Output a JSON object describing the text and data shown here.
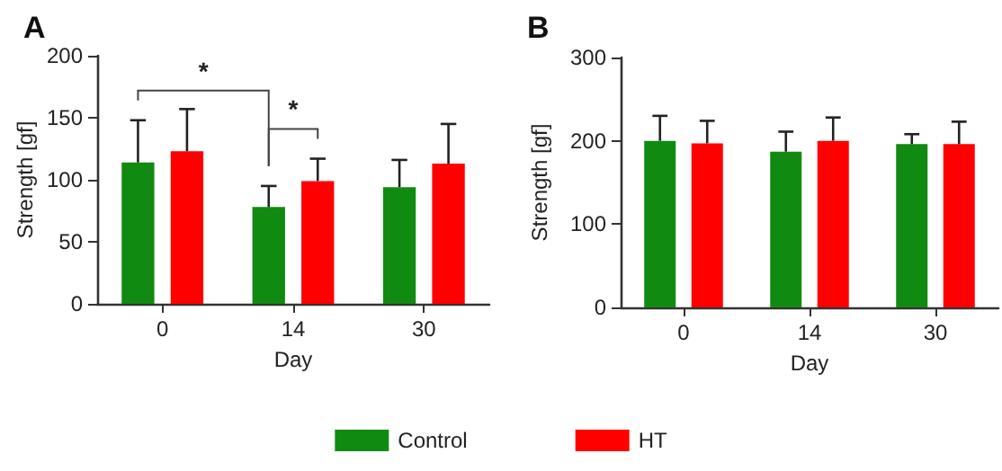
{
  "chart_data": [
    {
      "type": "bar",
      "title": "A",
      "xlabel": "Day",
      "ylabel": "Strength [gf]",
      "categories": [
        "0",
        "14",
        "30"
      ],
      "ylim": [
        0,
        200
      ],
      "yticks": [
        0,
        50,
        100,
        150,
        200
      ],
      "grid": false,
      "legend": "bottom",
      "annotations": [
        "*",
        "*"
      ],
      "series": [
        {
          "name": "Control",
          "color": "#118a11",
          "values": [
            114,
            78,
            94
          ],
          "errors": [
            [
              114,
              148
            ],
            [
              78,
              95
            ],
            [
              94,
              116
            ]
          ]
        },
        {
          "name": "HT",
          "color": "#ff0000",
          "values": [
            123,
            99,
            113
          ],
          "errors": [
            [
              123,
              157
            ],
            [
              99,
              117
            ],
            [
              113,
              145
            ]
          ]
        }
      ]
    },
    {
      "type": "bar",
      "title": "B",
      "xlabel": "Day",
      "ylabel": "Strength [gf]",
      "categories": [
        "0",
        "14",
        "30"
      ],
      "ylim": [
        0,
        300
      ],
      "yticks": [
        0,
        100,
        200,
        300
      ],
      "grid": false,
      "series": [
        {
          "color": "#118a11",
          "values": [
            200,
            187,
            196
          ],
          "errors": [
            [
              200,
              230
            ],
            [
              187,
              211
            ],
            [
              196,
              208
            ]
          ]
        },
        {
          "color": "#ff0000",
          "values": [
            197,
            200,
            196
          ],
          "errors": [
            [
              197,
              224
            ],
            [
              200,
              228
            ],
            [
              196,
              223
            ]
          ]
        }
      ]
    }
  ]
}
